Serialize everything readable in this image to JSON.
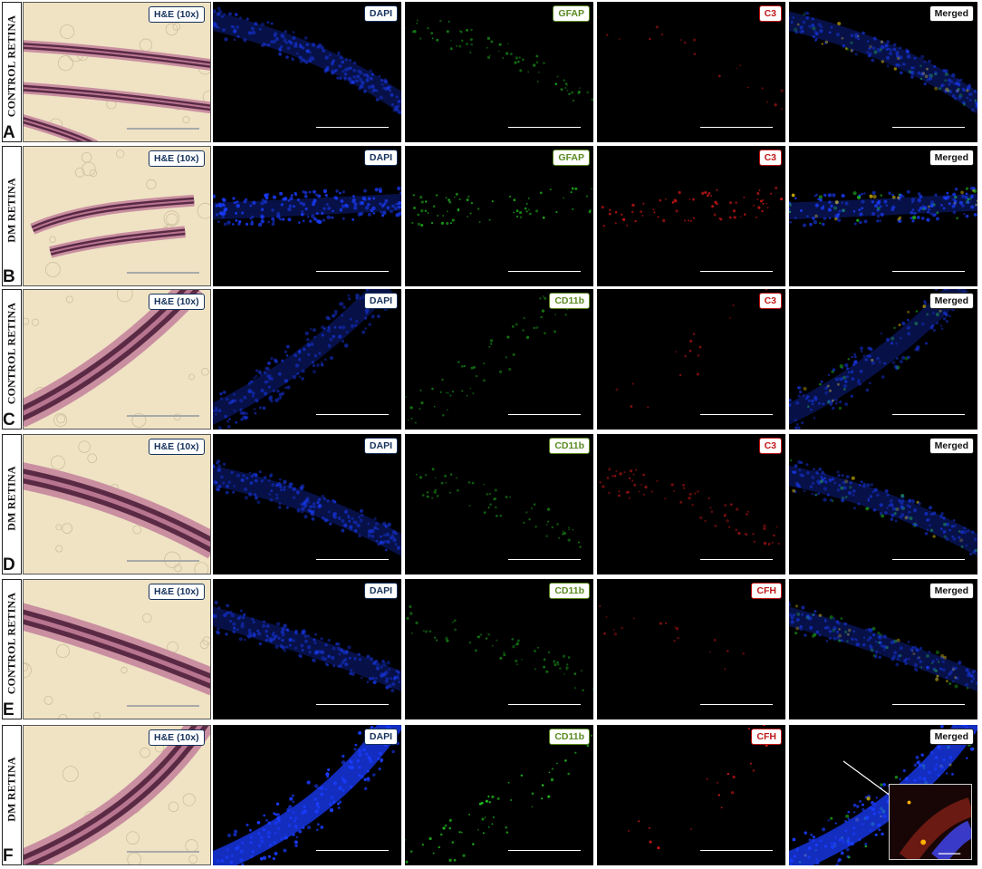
{
  "rows": [
    {
      "letter": "A",
      "group": "CONTROL RETINA",
      "he_label": "H&E (10x)",
      "dapi": "DAPI",
      "green": "GFAP",
      "red": "C3",
      "merged": "Merged"
    },
    {
      "letter": "B",
      "group": "DM RETINA",
      "he_label": "H&E (10x)",
      "dapi": "DAPI",
      "green": "GFAP",
      "red": "C3",
      "merged": "Merged"
    },
    {
      "letter": "C",
      "group": "CONTROL RETINA",
      "he_label": "H&E (10x)",
      "dapi": "DAPI",
      "green": "CD11b",
      "red": "C3",
      "merged": "Merged"
    },
    {
      "letter": "D",
      "group": "DM RETINA",
      "he_label": "H&E (10x)",
      "dapi": "DAPI",
      "green": "CD11b",
      "red": "C3",
      "merged": "Merged"
    },
    {
      "letter": "E",
      "group": "CONTROL RETINA",
      "he_label": "H&E (10x)",
      "dapi": "DAPI",
      "green": "CD11b",
      "red": "CFH",
      "merged": "Merged"
    },
    {
      "letter": "F",
      "group": "DM RETINA",
      "he_label": "H&E (10x)",
      "dapi": "DAPI",
      "green": "CD11b",
      "red": "CFH",
      "merged": "Merged"
    }
  ],
  "colors": {
    "dapi": "#1a3cff",
    "green_channel": "#22c020",
    "red_channel": "#e01a1a",
    "he_background": "#efe3c4",
    "he_tissue": "#5a2a45",
    "label_navy": "#16325c"
  }
}
